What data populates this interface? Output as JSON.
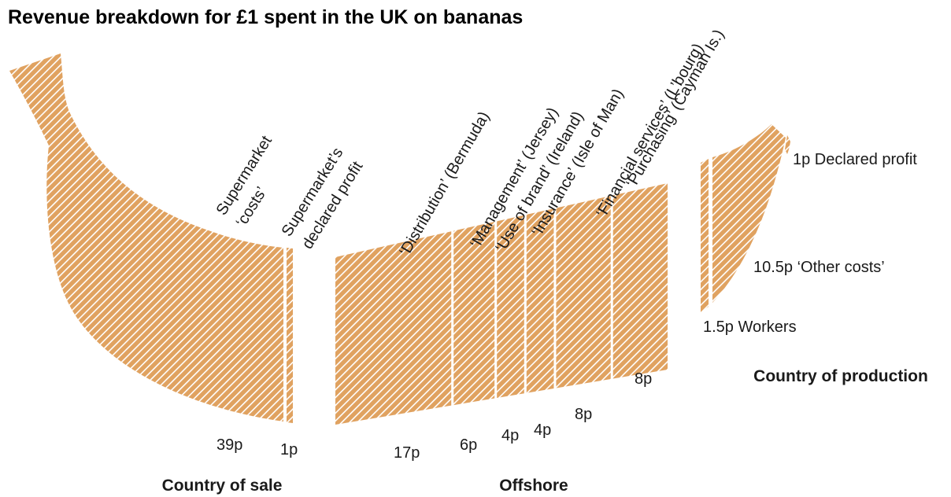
{
  "chart_data": {
    "type": "bar",
    "title": "Revenue breakdown for £1 spent in the UK on bananas",
    "fill_color": "#e0a260",
    "stripe_color": "#ffffff",
    "groups": [
      {
        "name": "Country of sale",
        "segments": [
          {
            "label": "Supermarket ‘costs’",
            "value": 39,
            "value_label": "39p"
          },
          {
            "label": "Supermarket’s declared profit",
            "value": 1,
            "value_label": "1p"
          }
        ]
      },
      {
        "name": "Offshore",
        "segments": [
          {
            "label": "‘Distribution’ (Bermuda)",
            "value": 17,
            "value_label": "17p"
          },
          {
            "label": "‘Management’ (Jersey)",
            "value": 6,
            "value_label": "6p"
          },
          {
            "label": "‘Use of brand’ (Ireland)",
            "value": 4,
            "value_label": "4p"
          },
          {
            "label": "‘Insurance’ (Isle of Man)",
            "value": 4,
            "value_label": "4p"
          },
          {
            "label": "‘Financial services’ (L’bourg)",
            "value": 8,
            "value_label": "8p"
          },
          {
            "label": "‘Purchasing’ (Cayman Is.)",
            "value": 8,
            "value_label": "8p"
          }
        ]
      },
      {
        "name": "Country of production",
        "segments": [
          {
            "label": "Workers",
            "value": 1.5,
            "value_label": "1.5p"
          },
          {
            "label": "‘Other costs’",
            "value": 10.5,
            "value_label": "10.5p"
          },
          {
            "label": "Declared profit",
            "value": 1,
            "value_label": "1p"
          }
        ]
      }
    ]
  }
}
